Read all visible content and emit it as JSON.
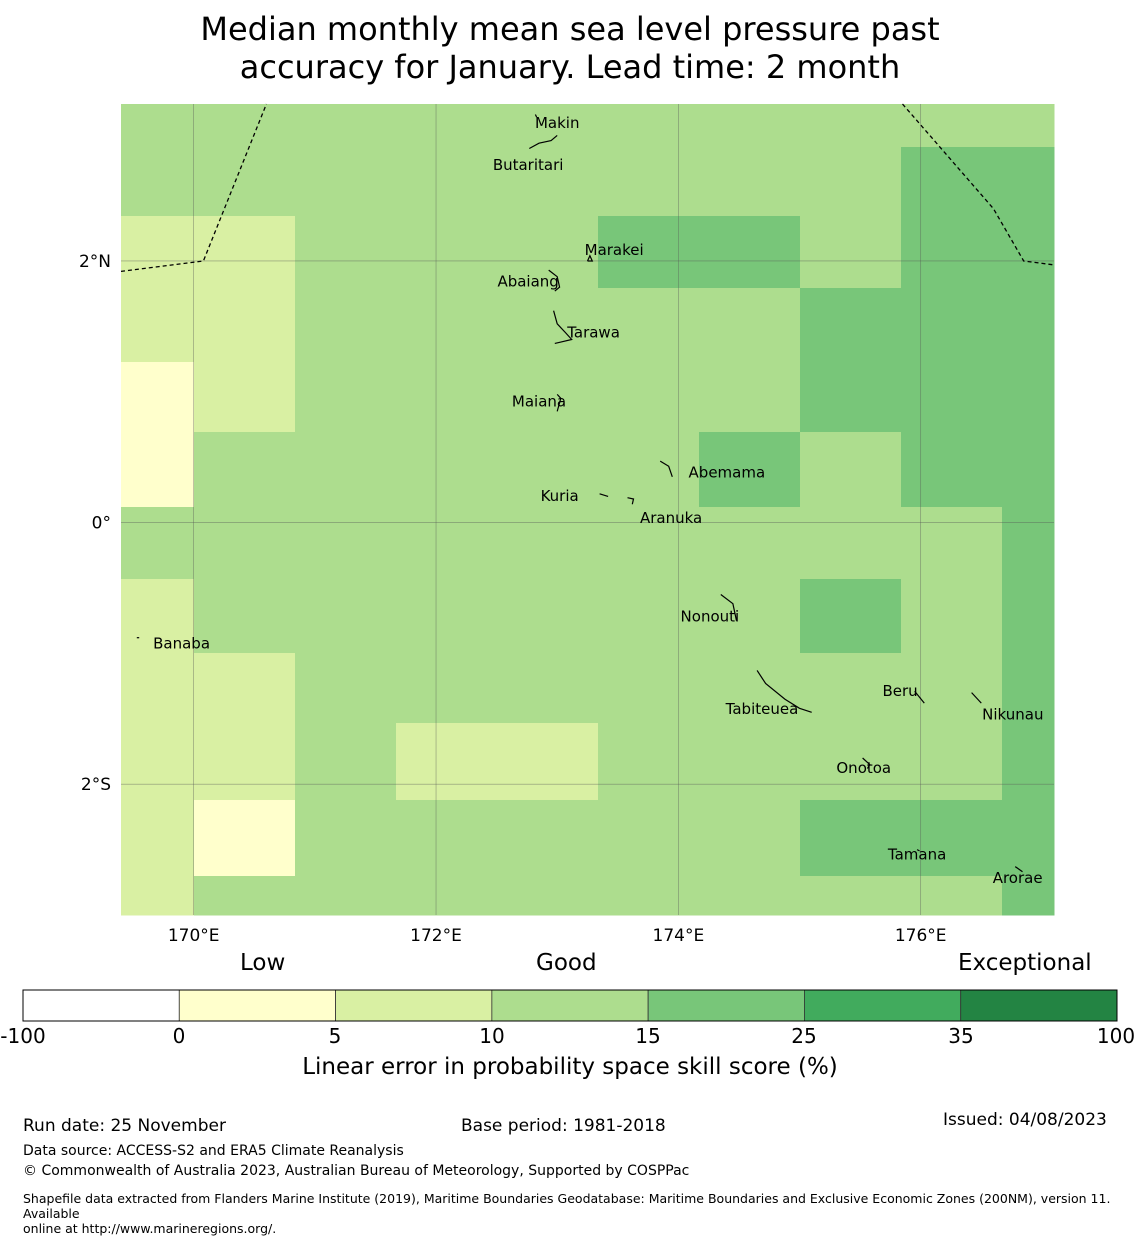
{
  "title_line1": "Median monthly mean sea level pressure past",
  "title_line2": "accuracy for January. Lead time: 2 month",
  "map": {
    "lon_range": [
      169.4,
      177.1
    ],
    "lat_range": [
      -3.0,
      3.2
    ],
    "lon_ticks": [
      {
        "value": 170,
        "label": "170°E"
      },
      {
        "value": 172,
        "label": "172°E"
      },
      {
        "value": 174,
        "label": "174°E"
      },
      {
        "value": 176,
        "label": "176°E"
      }
    ],
    "lat_ticks": [
      {
        "value": 2,
        "label": "2°N"
      },
      {
        "value": 0,
        "label": "0°"
      },
      {
        "value": -2,
        "label": "2°S"
      }
    ],
    "grid_cols": [
      169.4,
      170.0,
      170.84,
      171.67,
      172.5,
      173.34,
      174.17,
      175.0,
      175.84,
      176.67,
      177.1
    ],
    "grid_rows": [
      3.2,
      2.87,
      2.34,
      1.79,
      1.23,
      0.69,
      0.12,
      -0.43,
      -1.0,
      -1.53,
      -2.12,
      -2.7,
      -3.0
    ],
    "cell_classes": [
      [
        3,
        3,
        3,
        3,
        3,
        3,
        3,
        3,
        3,
        3
      ],
      [
        3,
        3,
        3,
        3,
        3,
        3,
        3,
        3,
        4,
        4
      ],
      [
        2,
        2,
        3,
        3,
        3,
        4,
        4,
        3,
        4,
        4
      ],
      [
        2,
        2,
        3,
        3,
        3,
        3,
        3,
        4,
        4,
        4
      ],
      [
        1,
        2,
        3,
        3,
        3,
        3,
        3,
        4,
        4,
        4
      ],
      [
        1,
        3,
        3,
        3,
        3,
        3,
        4,
        3,
        4,
        4
      ],
      [
        3,
        3,
        3,
        3,
        3,
        3,
        3,
        3,
        3,
        4
      ],
      [
        2,
        3,
        3,
        3,
        3,
        3,
        3,
        4,
        3,
        4
      ],
      [
        2,
        2,
        3,
        3,
        3,
        3,
        3,
        3,
        3,
        4
      ],
      [
        2,
        2,
        3,
        2,
        2,
        3,
        3,
        3,
        3,
        4
      ],
      [
        2,
        1,
        3,
        3,
        3,
        3,
        3,
        4,
        4,
        4
      ],
      [
        2,
        3,
        3,
        3,
        3,
        3,
        3,
        3,
        3,
        4
      ]
    ],
    "boundaries": [
      [
        [
          169.4,
          1.92
        ],
        [
          170.08,
          2.0
        ],
        [
          170.6,
          3.2
        ]
      ],
      [
        [
          175.85,
          3.2
        ],
        [
          176.6,
          2.4
        ],
        [
          176.85,
          2.0
        ],
        [
          177.1,
          1.97
        ]
      ]
    ],
    "islands": [
      {
        "name": "Makin",
        "label_lon": 173.0,
        "label_lat": 3.05,
        "shape": [
          [
            172.82,
            3.12
          ],
          [
            172.83,
            3.1
          ]
        ]
      },
      {
        "name": "Butaritari",
        "label_lon": 172.76,
        "label_lat": 2.73,
        "shape": [
          [
            172.77,
            2.86
          ],
          [
            172.85,
            2.9
          ],
          [
            172.95,
            2.92
          ],
          [
            173.0,
            2.96
          ]
        ]
      },
      {
        "name": "Marakei",
        "label_lon": 173.47,
        "label_lat": 2.08,
        "shape": [
          [
            173.25,
            2.0
          ],
          [
            173.27,
            2.04
          ],
          [
            173.29,
            2.0
          ],
          [
            173.25,
            2.0
          ]
        ]
      },
      {
        "name": "Abaiang",
        "label_lon": 172.76,
        "label_lat": 1.84,
        "shape": [
          [
            172.93,
            1.93
          ],
          [
            173.0,
            1.88
          ],
          [
            173.02,
            1.8
          ],
          [
            172.98,
            1.77
          ]
        ]
      },
      {
        "name": "Tarawa",
        "label_lon": 173.3,
        "label_lat": 1.45,
        "shape": [
          [
            172.97,
            1.62
          ],
          [
            173.0,
            1.52
          ],
          [
            173.07,
            1.45
          ],
          [
            173.12,
            1.4
          ],
          [
            173.03,
            1.38
          ],
          [
            172.98,
            1.37
          ]
        ]
      },
      {
        "name": "Maiana",
        "label_lon": 172.85,
        "label_lat": 0.92,
        "shape": [
          [
            173.0,
            0.98
          ],
          [
            173.03,
            0.95
          ],
          [
            173.0,
            0.85
          ]
        ]
      },
      {
        "name": "Abemama",
        "label_lon": 174.4,
        "label_lat": 0.38,
        "shape": [
          [
            173.85,
            0.47
          ],
          [
            173.92,
            0.43
          ],
          [
            173.95,
            0.35
          ]
        ]
      },
      {
        "name": "Kuria",
        "label_lon": 173.02,
        "label_lat": 0.2,
        "shape": [
          [
            173.35,
            0.22
          ],
          [
            173.42,
            0.2
          ]
        ]
      },
      {
        "name": "Aranuka",
        "label_lon": 173.94,
        "label_lat": 0.03,
        "shape": [
          [
            173.58,
            0.19
          ],
          [
            173.63,
            0.18
          ],
          [
            173.62,
            0.14
          ]
        ]
      },
      {
        "name": "Nonouti",
        "label_lon": 174.26,
        "label_lat": -0.72,
        "shape": [
          [
            174.35,
            -0.55
          ],
          [
            174.45,
            -0.62
          ],
          [
            174.48,
            -0.75
          ]
        ]
      },
      {
        "name": "Tabiteuea",
        "label_lon": 174.69,
        "label_lat": -1.43,
        "shape": [
          [
            174.65,
            -1.13
          ],
          [
            174.72,
            -1.23
          ],
          [
            174.88,
            -1.35
          ],
          [
            175.0,
            -1.42
          ],
          [
            175.1,
            -1.45
          ]
        ]
      },
      {
        "name": "Beru",
        "label_lon": 175.83,
        "label_lat": -1.29,
        "shape": [
          [
            175.95,
            -1.29
          ],
          [
            176.03,
            -1.38
          ]
        ]
      },
      {
        "name": "Nikunau",
        "label_lon": 176.76,
        "label_lat": -1.47,
        "shape": [
          [
            176.42,
            -1.3
          ],
          [
            176.5,
            -1.38
          ]
        ]
      },
      {
        "name": "Onotoa",
        "label_lon": 175.53,
        "label_lat": -1.88,
        "shape": [
          [
            175.52,
            -1.8
          ],
          [
            175.58,
            -1.85
          ],
          [
            175.56,
            -1.88
          ]
        ]
      },
      {
        "name": "Tamana",
        "label_lon": 175.97,
        "label_lat": -2.54,
        "shape": [
          [
            175.97,
            -2.5
          ],
          [
            175.99,
            -2.51
          ]
        ]
      },
      {
        "name": "Arorae",
        "label_lon": 176.8,
        "label_lat": -2.72,
        "shape": [
          [
            176.78,
            -2.63
          ],
          [
            176.84,
            -2.67
          ]
        ]
      },
      {
        "name": "Banaba",
        "label_lon": 169.9,
        "label_lat": -0.93,
        "shape": [
          [
            169.53,
            -0.88
          ],
          [
            169.55,
            -0.88
          ]
        ]
      }
    ]
  },
  "legend": {
    "category_labels": [
      "Low",
      "Good",
      "Exceptional"
    ],
    "tick_labels": [
      "-100",
      "0",
      "5",
      "10",
      "15",
      "25",
      "35",
      "100"
    ],
    "colors": [
      "#ffffff",
      "#ffffcc",
      "#d9f0a3",
      "#addd8e",
      "#78c679",
      "#41ab5d",
      "#238443"
    ],
    "title": "Linear error in probability space skill score (%)"
  },
  "footer": {
    "run_date": "Run date: 25 November",
    "base_period": "Base period: 1981-2018",
    "issued": "Issued: 04/08/2023",
    "data_source": "Data source: ACCESS-S2 and ERA5 Climate Reanalysis",
    "copyright": "© Commonwealth of Australia 2023, Australian Bureau of Meteorology, Supported by COSPPac",
    "shapefile_line1": "Shapefile data extracted from Flanders Marine Institute (2019), Maritime Boundaries Geodatabase: Maritime Boundaries and Exclusive Economic Zones (200NM), version 11. Available",
    "shapefile_line2": "online at http://www.marineregions.org/."
  }
}
